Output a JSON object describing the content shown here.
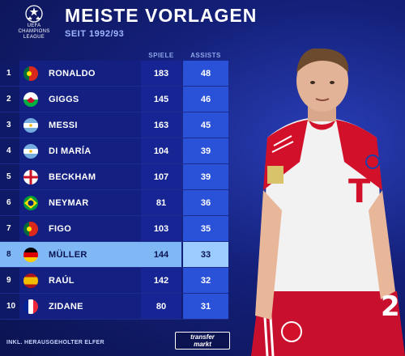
{
  "header": {
    "logo_text": "UEFA\nCHAMPIONS\nLEAGUE",
    "title": "MEISTE VORLAGEN",
    "subtitle": "SEIT 1992/93"
  },
  "columns": {
    "games": "SPIELE",
    "assists": "ASSISTS"
  },
  "rows": [
    {
      "rank": "1",
      "name": "RONALDO",
      "games": "183",
      "assists": "48",
      "flag": "portugal"
    },
    {
      "rank": "2",
      "name": "GIGGS",
      "games": "145",
      "assists": "46",
      "flag": "wales"
    },
    {
      "rank": "3",
      "name": "MESSI",
      "games": "163",
      "assists": "45",
      "flag": "argentina"
    },
    {
      "rank": "4",
      "name": "DI MARÍA",
      "games": "104",
      "assists": "39",
      "flag": "argentina"
    },
    {
      "rank": "5",
      "name": "BECKHAM",
      "games": "107",
      "assists": "39",
      "flag": "england"
    },
    {
      "rank": "6",
      "name": "NEYMAR",
      "games": "81",
      "assists": "36",
      "flag": "brazil"
    },
    {
      "rank": "7",
      "name": "FIGO",
      "games": "103",
      "assists": "35",
      "flag": "portugal"
    },
    {
      "rank": "8",
      "name": "MÜLLER",
      "games": "144",
      "assists": "33",
      "flag": "germany"
    },
    {
      "rank": "9",
      "name": "RAÚL",
      "games": "142",
      "assists": "32",
      "flag": "spain"
    },
    {
      "rank": "10",
      "name": "ZIDANE",
      "games": "80",
      "assists": "31",
      "flag": "france"
    }
  ],
  "highlight_rank": "8",
  "footer": {
    "note": "INKL. HERAUSGEHOLTER ELFER",
    "brand_line1": "transfer",
    "brand_line2": "markt"
  },
  "player": {
    "shirt_logo": "T",
    "shirt_number": "2"
  },
  "colors": {
    "background": "#14207a",
    "assist_column": "#2a52d8",
    "highlight_row": "#7fb8f5",
    "shirt_red": "#d2102a"
  }
}
